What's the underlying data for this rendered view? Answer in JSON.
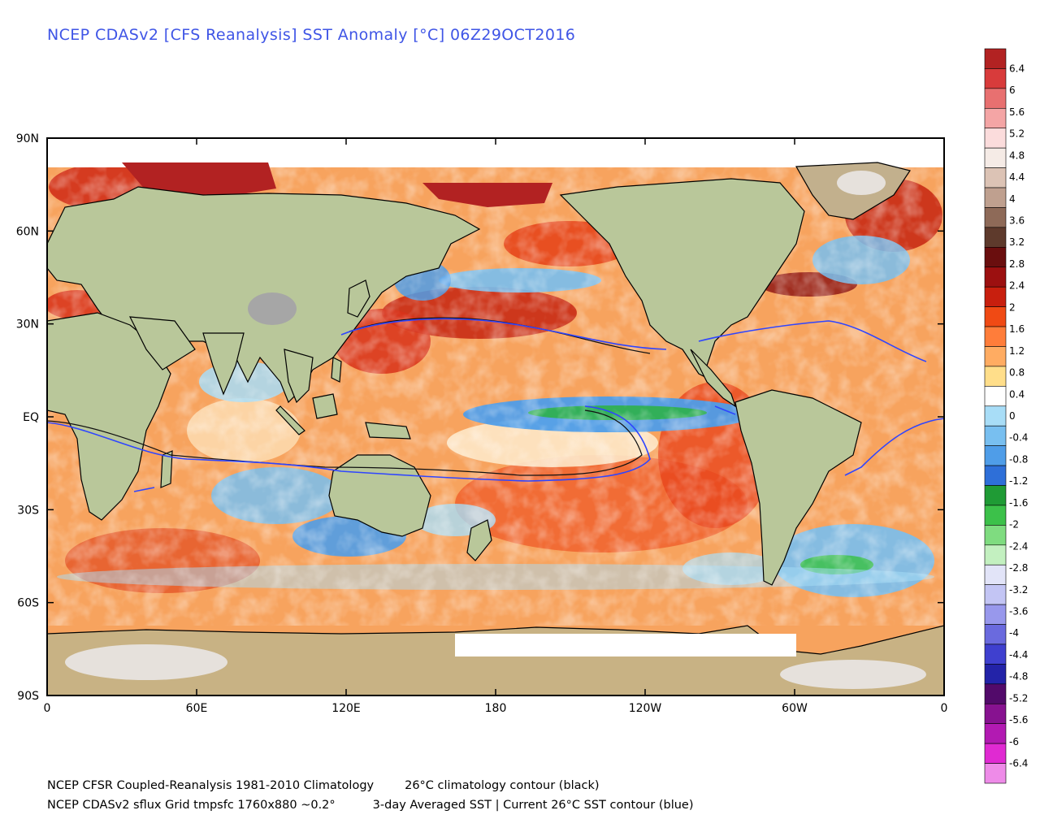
{
  "title": "NCEP CDASv2 [CFS Reanalysis] SST Anomaly [°C] 06Z29OCT2016",
  "map": {
    "lat_labels": [
      "90N",
      "60N",
      "30N",
      "EQ",
      "30S",
      "60S",
      "90S"
    ],
    "lat_values": [
      90,
      60,
      30,
      0,
      -30,
      -60,
      -90
    ],
    "lon_labels": [
      "0",
      "60E",
      "120E",
      "180",
      "120W",
      "60W",
      "0"
    ],
    "lon_values": [
      0,
      60,
      120,
      180,
      240,
      300,
      360
    ]
  },
  "colorbar": {
    "labels": [
      "6.4",
      "6",
      "5.6",
      "5.2",
      "4.8",
      "4.4",
      "4",
      "3.6",
      "3.2",
      "2.8",
      "2.4",
      "2",
      "1.6",
      "1.2",
      "0.8",
      "0.4",
      "0",
      "-0.4",
      "-0.8",
      "-1.2",
      "-1.6",
      "-2",
      "-2.4",
      "-2.8",
      "-3.2",
      "-3.6",
      "-4",
      "-4.4",
      "-4.8",
      "-5.2",
      "-5.6",
      "-6",
      "-6.4"
    ],
    "colors": [
      "#b22222",
      "#d83b3b",
      "#e87070",
      "#f4a5a5",
      "#fbdcdc",
      "#f5ebe6",
      "#dcc3b5",
      "#bfa08f",
      "#8e6a58",
      "#5e3a2c",
      "#6a0e0e",
      "#9c1010",
      "#c81f0e",
      "#f04a14",
      "#ff7d3a",
      "#ffac62",
      "#ffde8a",
      "#ffffff",
      "#a8ddf7",
      "#78bff0",
      "#4f9de8",
      "#2e6fd8",
      "#1f9b35",
      "#3cc14a",
      "#7fdc80",
      "#c3f0c0",
      "#e2e4f8",
      "#c3c5f4",
      "#9898ec",
      "#6a6ade",
      "#3f40cf",
      "#2323a8",
      "#520a6a",
      "#871290",
      "#b21ab2",
      "#e02ad2",
      "#ee8be8"
    ]
  },
  "footer": {
    "line1_left": "NCEP CFSR Coupled-Reanalysis 1981-2010 Climatology",
    "line1_right": "26°C climatology contour (black)",
    "line2_left": "NCEP CDASv2 sflux Grid tmpsfc 1760x880 ~0.2°",
    "line2_right": "3-day Averaged SST | Current 26°C SST contour (blue)"
  }
}
